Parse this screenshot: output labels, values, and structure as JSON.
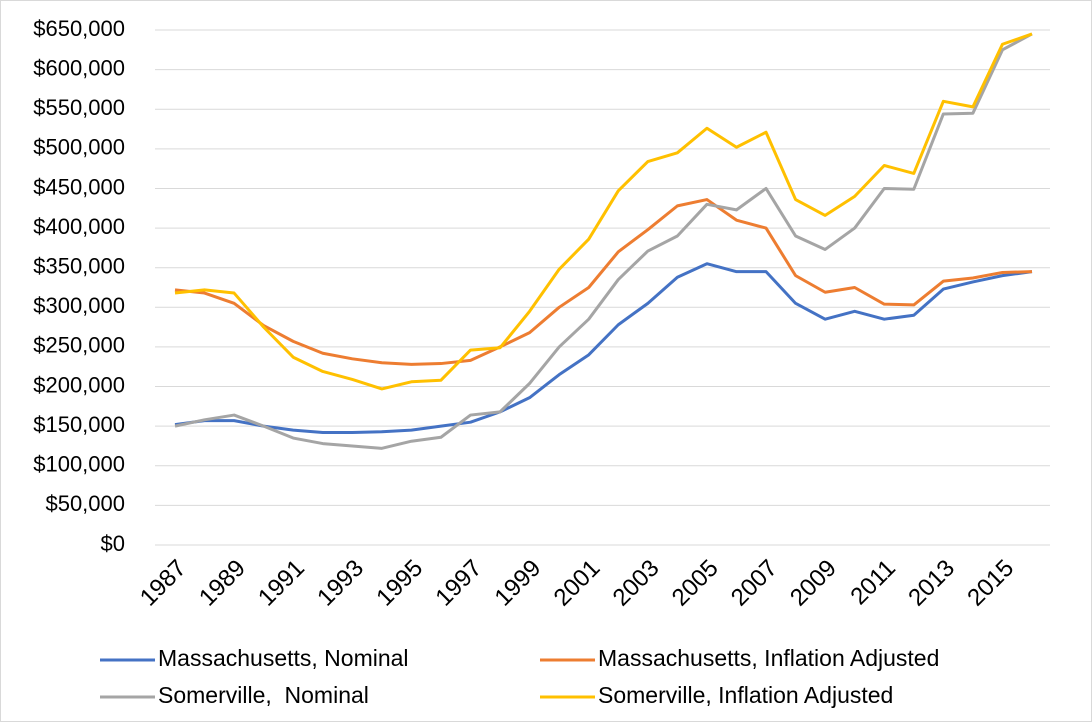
{
  "chart_data": {
    "type": "line",
    "categories": [
      "1987",
      null,
      "1989",
      null,
      "1991",
      null,
      "1993",
      null,
      "1995",
      null,
      "1997",
      null,
      "1999",
      null,
      "2001",
      null,
      "2003",
      null,
      "2005",
      null,
      "2007",
      null,
      "2009",
      null,
      "2011",
      null,
      "2013",
      null,
      "2015",
      null
    ],
    "series": [
      {
        "name": "Massachusetts, Nominal",
        "color": "#4472c4",
        "values": [
          152000,
          157000,
          157000,
          150000,
          145000,
          142000,
          142000,
          143000,
          145000,
          150000,
          155000,
          168000,
          186000,
          215000,
          240000,
          278000,
          305000,
          338000,
          355000,
          345000,
          345000,
          305000,
          285000,
          295000,
          285000,
          290000,
          323000,
          332000,
          340000,
          345000
        ]
      },
      {
        "name": "Massachusetts, Inflation Adjusted",
        "color": "#ed7d31",
        "values": [
          322000,
          318000,
          305000,
          277000,
          257000,
          242000,
          235000,
          230000,
          228000,
          229000,
          233000,
          250000,
          268000,
          300000,
          325000,
          370000,
          398000,
          428000,
          436000,
          410000,
          400000,
          340000,
          319000,
          325000,
          304000,
          303000,
          333000,
          337000,
          344000,
          345000
        ]
      },
      {
        "name": "Somerville,  Nominal",
        "color": "#a5a5a5",
        "values": [
          150000,
          158000,
          164000,
          150000,
          135000,
          128000,
          125000,
          122000,
          131000,
          136000,
          164000,
          168000,
          204000,
          250000,
          285000,
          335000,
          371000,
          390000,
          430000,
          423000,
          450000,
          390000,
          373000,
          400000,
          450000,
          449000,
          544000,
          545000,
          625000,
          645000
        ]
      },
      {
        "name": "Somerville, Inflation Adjusted",
        "color": "#ffc000",
        "values": [
          318000,
          322000,
          318000,
          275000,
          237000,
          219000,
          209000,
          197000,
          206000,
          208000,
          246000,
          249000,
          295000,
          348000,
          386000,
          447000,
          484000,
          495000,
          526000,
          502000,
          521000,
          436000,
          416000,
          440000,
          479000,
          469000,
          560000,
          553000,
          632000,
          645000
        ]
      }
    ],
    "ylim": [
      0,
      650000
    ],
    "yticks": [
      {
        "value": 0,
        "label": "$0"
      },
      {
        "value": 50000,
        "label": "$50,000"
      },
      {
        "value": 100000,
        "label": "$100,000"
      },
      {
        "value": 150000,
        "label": "$150,000"
      },
      {
        "value": 200000,
        "label": "$200,000"
      },
      {
        "value": 250000,
        "label": "$250,000"
      },
      {
        "value": 300000,
        "label": "$300,000"
      },
      {
        "value": 350000,
        "label": "$350,000"
      },
      {
        "value": 400000,
        "label": "$400,000"
      },
      {
        "value": 450000,
        "label": "$450,000"
      },
      {
        "value": 500000,
        "label": "$500,000"
      },
      {
        "value": 550000,
        "label": "$550,000"
      },
      {
        "value": 600000,
        "label": "$600,000"
      },
      {
        "value": 650000,
        "label": "$650,000"
      }
    ],
    "grid": true,
    "legend": "bottom"
  }
}
